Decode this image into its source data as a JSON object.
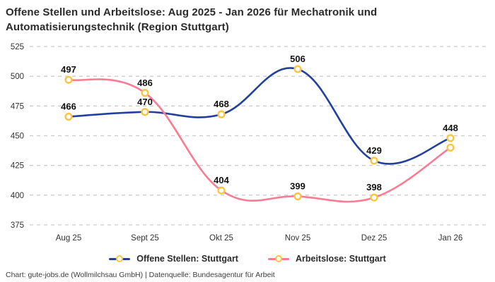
{
  "header": {
    "title_line1": "Offene Stellen und Arbeitslose: Aug 2025 - Jan 2026 für Mechatronik und",
    "title_line2": "Automatisierungstechnik (Region Stuttgart)"
  },
  "footer": {
    "credit": "Chart: gute-jobs.de (Wollmilchsau GmbH) | Datenquelle: Bundesagentur für Arbeit"
  },
  "chart_data": {
    "type": "line",
    "title": "Offene Stellen und Arbeitslose: Aug 2025 - Jan 2026 für Mechatronik und Automatisierungstechnik (Region Stuttgart)",
    "categories": [
      "Aug 25",
      "Sept 25",
      "Okt 25",
      "Nov 25",
      "Dez 25",
      "Jan 26"
    ],
    "series": [
      {
        "name": "Offene Stellen: Stuttgart",
        "color": "#22409e",
        "values": [
          466,
          470,
          468,
          506,
          429,
          448
        ],
        "point_labels": [
          "466",
          "470",
          "468",
          "506",
          "429",
          "448"
        ]
      },
      {
        "name": "Arbeitslose: Stuttgart",
        "color": "#fa7b92",
        "values": [
          497,
          486,
          404,
          399,
          398,
          440
        ],
        "point_labels": [
          "497",
          "486",
          "404",
          "399",
          "398",
          ""
        ]
      }
    ],
    "marker": {
      "fill": "#ffffff",
      "stroke": "#fdc53e"
    },
    "ylim": [
      375,
      525
    ],
    "yticks": [
      "375",
      "400",
      "425",
      "450",
      "475",
      "500",
      "525"
    ],
    "xlabel": "",
    "ylabel": "",
    "grid": "horizontal-dashed",
    "grid_color": "#cccccc",
    "tick_color": "#333333",
    "point_label_color": "#111111",
    "legend_position": "bottom"
  }
}
